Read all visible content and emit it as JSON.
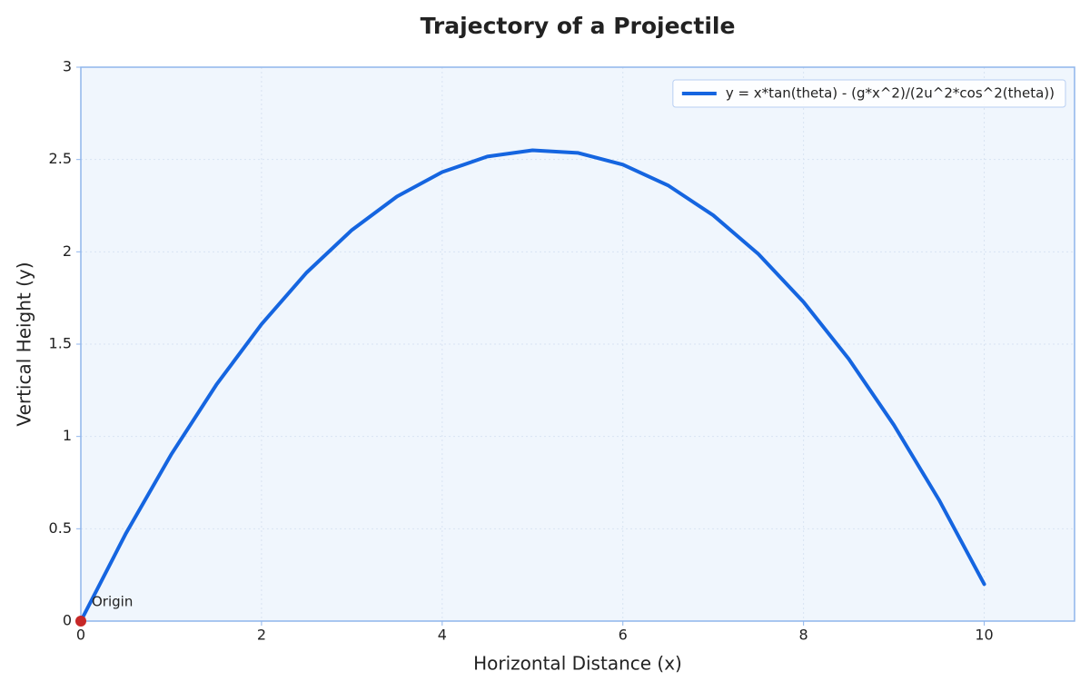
{
  "chart_data": {
    "type": "line",
    "title": "Trajectory of a Projectile",
    "xlabel": "Horizontal Distance (x)",
    "ylabel": "Vertical Height (y)",
    "x": [
      0,
      0.5,
      1,
      1.5,
      2,
      2.5,
      3,
      3.5,
      4,
      4.5,
      5,
      5.5,
      6,
      6.5,
      7,
      7.5,
      8,
      8.5,
      9,
      9.5,
      10
    ],
    "series": [
      {
        "name": "y = x*tan(theta) - (g*x^2)/(2u^2*cos^2(theta))",
        "color": "#1565e0",
        "values": [
          0,
          0.476,
          0.902,
          1.28,
          1.608,
          1.888,
          2.118,
          2.3,
          2.432,
          2.516,
          2.55,
          2.536,
          2.472,
          2.36,
          2.198,
          1.988,
          1.728,
          1.42,
          1.062,
          0.656,
          0.2
        ]
      }
    ],
    "annotations": [
      {
        "text": "Origin",
        "x": 0,
        "y": 0,
        "color": "#c62828"
      }
    ],
    "xlim": [
      0,
      11
    ],
    "ylim": [
      0,
      3
    ],
    "xticks": [
      0,
      2,
      4,
      6,
      8,
      10
    ],
    "yticks": [
      0,
      0.5,
      1,
      1.5,
      2,
      2.5,
      3
    ],
    "grid": true,
    "legend": "upper right"
  }
}
